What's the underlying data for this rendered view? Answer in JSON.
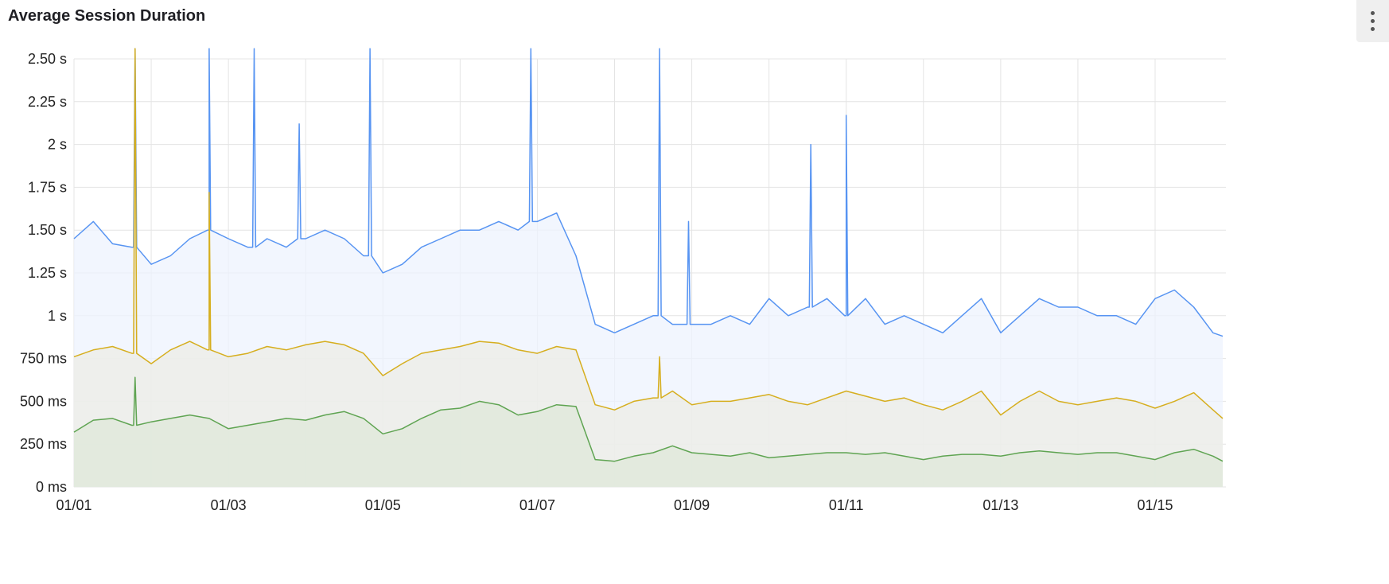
{
  "panel": {
    "title": "Average Session Duration",
    "menu_icon": "kebab-menu-icon"
  },
  "chart_data": {
    "type": "area",
    "title": "Average Session Duration",
    "xlabel": "",
    "ylabel": "",
    "ylim": [
      0,
      2500
    ],
    "y_unit": "ms",
    "y_ticks": [
      {
        "value": 0,
        "label": "0 ms"
      },
      {
        "value": 250,
        "label": "250 ms"
      },
      {
        "value": 500,
        "label": "500 ms"
      },
      {
        "value": 750,
        "label": "750 ms"
      },
      {
        "value": 1000,
        "label": "1 s"
      },
      {
        "value": 1250,
        "label": "1.25 s"
      },
      {
        "value": 1500,
        "label": "1.50 s"
      },
      {
        "value": 1750,
        "label": "1.75 s"
      },
      {
        "value": 2000,
        "label": "2 s"
      },
      {
        "value": 2250,
        "label": "2.25 s"
      },
      {
        "value": 2500,
        "label": "2.50 s"
      }
    ],
    "x_ticks": [
      "01/01",
      "01/03",
      "01/05",
      "01/07",
      "01/09",
      "01/11",
      "01/13",
      "01/15"
    ],
    "xlim": [
      "01/01 00:00",
      "01/15 22:00"
    ],
    "grid": true,
    "legend": "none",
    "x": [
      "01/01 00:00",
      "01/01 06:00",
      "01/01 12:00",
      "01/01 18:00",
      "01/02 00:00",
      "01/02 06:00",
      "01/02 12:00",
      "01/02 18:00",
      "01/03 00:00",
      "01/03 06:00",
      "01/03 12:00",
      "01/03 18:00",
      "01/04 00:00",
      "01/04 06:00",
      "01/04 12:00",
      "01/04 18:00",
      "01/05 00:00",
      "01/05 06:00",
      "01/05 12:00",
      "01/05 18:00",
      "01/06 00:00",
      "01/06 06:00",
      "01/06 12:00",
      "01/06 18:00",
      "01/07 00:00",
      "01/07 06:00",
      "01/07 12:00",
      "01/07 18:00",
      "01/08 00:00",
      "01/08 06:00",
      "01/08 12:00",
      "01/08 18:00",
      "01/09 00:00",
      "01/09 06:00",
      "01/09 12:00",
      "01/09 18:00",
      "01/10 00:00",
      "01/10 06:00",
      "01/10 12:00",
      "01/10 18:00",
      "01/11 00:00",
      "01/11 06:00",
      "01/11 12:00",
      "01/11 18:00",
      "01/12 00:00",
      "01/12 06:00",
      "01/12 12:00",
      "01/12 18:00",
      "01/13 00:00",
      "01/13 06:00",
      "01/13 12:00",
      "01/13 18:00",
      "01/14 00:00",
      "01/14 06:00",
      "01/14 12:00",
      "01/14 18:00",
      "01/15 00:00",
      "01/15 06:00",
      "01/15 12:00",
      "01/15 18:00",
      "01/15 21:00"
    ],
    "series": [
      {
        "color": "#5794f2",
        "fill": "#edf3fd",
        "values": [
          1450,
          1550,
          1420,
          1400,
          1300,
          1350,
          1450,
          1500,
          1450,
          1400,
          1450,
          1400,
          1450,
          1500,
          1450,
          1350,
          1250,
          1300,
          1400,
          1450,
          1500,
          1500,
          1550,
          1500,
          1550,
          1600,
          1350,
          950,
          900,
          950,
          1000,
          950,
          950,
          950,
          1000,
          950,
          1100,
          1000,
          1050,
          1100,
          1000,
          1100,
          950,
          1000,
          950,
          900,
          1000,
          1100,
          900,
          1000,
          1100,
          1050,
          1050,
          1000,
          1000,
          950,
          1100,
          1150,
          1050,
          900,
          880
        ],
        "spikes": [
          {
            "x": "01/01 19:00",
            "y": 2600
          },
          {
            "x": "01/02 18:00",
            "y": 2600
          },
          {
            "x": "01/03 08:00",
            "y": 2600
          },
          {
            "x": "01/03 22:00",
            "y": 2120
          },
          {
            "x": "01/04 20:00",
            "y": 2600
          },
          {
            "x": "01/06 22:00",
            "y": 2600
          },
          {
            "x": "01/08 14:00",
            "y": 2600
          },
          {
            "x": "01/08 23:00",
            "y": 1550
          },
          {
            "x": "01/10 13:00",
            "y": 2000
          },
          {
            "x": "01/11 00:00",
            "y": 2170
          }
        ]
      },
      {
        "color": "#d6ae1e",
        "fill": "#ecece6",
        "values": [
          760,
          800,
          820,
          780,
          720,
          800,
          850,
          800,
          760,
          780,
          820,
          800,
          830,
          850,
          830,
          780,
          650,
          720,
          780,
          800,
          820,
          850,
          840,
          800,
          780,
          820,
          800,
          480,
          450,
          500,
          520,
          560,
          480,
          500,
          500,
          520,
          540,
          500,
          480,
          520,
          560,
          530,
          500,
          520,
          480,
          450,
          500,
          560,
          420,
          500,
          560,
          500,
          480,
          500,
          520,
          500,
          460,
          500,
          550,
          450,
          400
        ],
        "spikes": [
          {
            "x": "01/01 19:00",
            "y": 2600
          },
          {
            "x": "01/02 18:00",
            "y": 1720
          },
          {
            "x": "01/08 14:00",
            "y": 760
          }
        ]
      },
      {
        "color": "#5fa452",
        "fill": "#dfe8da",
        "values": [
          320,
          390,
          400,
          360,
          380,
          400,
          420,
          400,
          340,
          360,
          380,
          400,
          390,
          420,
          440,
          400,
          310,
          340,
          400,
          450,
          460,
          500,
          480,
          420,
          440,
          480,
          470,
          160,
          150,
          180,
          200,
          240,
          200,
          190,
          180,
          200,
          170,
          180,
          190,
          200,
          200,
          190,
          200,
          180,
          160,
          180,
          190,
          190,
          180,
          200,
          210,
          200,
          190,
          200,
          200,
          180,
          160,
          200,
          220,
          180,
          150
        ],
        "spikes": [
          {
            "x": "01/01 19:00",
            "y": 640
          }
        ]
      }
    ]
  }
}
